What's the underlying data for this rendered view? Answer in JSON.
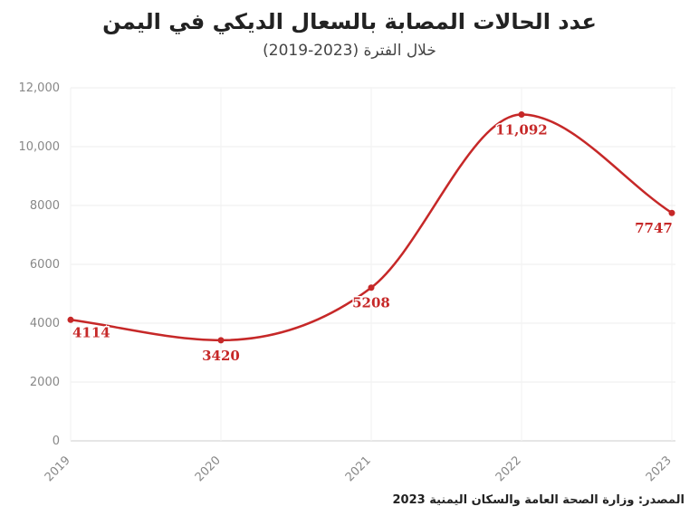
{
  "chart_data": {
    "type": "line",
    "title": "عدد الحالات المصابة بالسعال الديكي في اليمن",
    "subtitle": "خلال الفترة (2023-2019)",
    "x": [
      "2019",
      "2020",
      "2021",
      "2022",
      "2023"
    ],
    "values": [
      4114,
      3420,
      5208,
      11092,
      7747
    ],
    "value_labels": [
      "4114",
      "3420",
      "5208",
      "11,092",
      "7747"
    ],
    "y_ticks": [
      "0",
      "2000",
      "4000",
      "6000",
      "8000",
      "10,000",
      "12,000"
    ],
    "ylim": [
      0,
      12000
    ],
    "grid": true,
    "line_color": "#c62828",
    "source": "المصدر: وزارة الصحة العامة والسكان اليمنية 2023"
  }
}
